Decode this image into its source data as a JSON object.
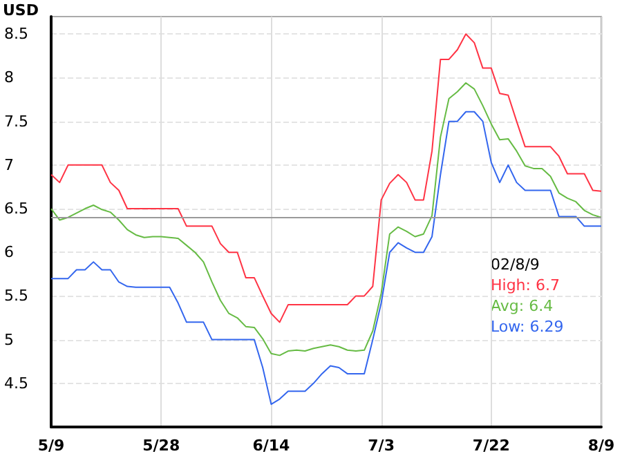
{
  "chart_data": {
    "type": "line",
    "ylabel": "USD",
    "categories": [
      "5/9",
      null,
      null,
      null,
      null,
      null,
      null,
      null,
      null,
      null,
      null,
      null,
      null,
      "5/28",
      null,
      null,
      null,
      null,
      null,
      null,
      null,
      null,
      null,
      null,
      null,
      null,
      "6/14",
      null,
      null,
      null,
      null,
      null,
      null,
      null,
      null,
      null,
      null,
      null,
      null,
      "7/3",
      null,
      null,
      null,
      null,
      null,
      null,
      null,
      null,
      null,
      null,
      null,
      null,
      "7/22",
      null,
      null,
      null,
      null,
      null,
      null,
      null,
      null,
      null,
      null,
      null,
      null,
      "8/9"
    ],
    "series": [
      {
        "color": "#ff3344",
        "values": [
          6.89,
          6.8,
          7.0,
          7.0,
          7.0,
          7.0,
          7.0,
          6.8,
          6.71,
          6.5,
          6.5,
          6.5,
          6.5,
          6.5,
          6.5,
          6.5,
          6.3,
          6.3,
          6.3,
          6.3,
          6.1,
          6.0,
          6.0,
          5.71,
          5.71,
          5.5,
          5.3,
          5.2,
          5.4,
          5.4,
          5.4,
          5.4,
          5.4,
          5.4,
          5.4,
          5.4,
          5.5,
          5.5,
          5.61,
          6.6,
          6.79,
          6.89,
          6.8,
          6.6,
          6.6,
          7.16,
          8.21,
          8.21,
          8.32,
          8.5,
          8.4,
          8.11,
          8.11,
          7.82,
          7.8,
          7.5,
          7.21,
          7.21,
          7.21,
          7.21,
          7.1,
          6.9,
          6.9,
          6.9,
          6.71,
          6.7
        ]
      },
      {
        "color": "#66bb44",
        "values": [
          6.5,
          6.37,
          6.4,
          6.45,
          6.5,
          6.54,
          6.49,
          6.46,
          6.37,
          6.26,
          6.2,
          6.17,
          6.18,
          6.18,
          6.17,
          6.16,
          6.08,
          6.0,
          5.89,
          5.66,
          5.45,
          5.3,
          5.25,
          5.15,
          5.14,
          5.01,
          4.84,
          4.82,
          4.87,
          4.88,
          4.87,
          4.9,
          4.92,
          4.94,
          4.92,
          4.88,
          4.87,
          4.88,
          5.1,
          5.53,
          6.21,
          6.29,
          6.24,
          6.18,
          6.21,
          6.42,
          7.32,
          7.76,
          7.84,
          7.94,
          7.87,
          7.68,
          7.47,
          7.29,
          7.3,
          7.16,
          6.99,
          6.96,
          6.96,
          6.87,
          6.68,
          6.62,
          6.58,
          6.48,
          6.43,
          6.4
        ]
      },
      {
        "color": "#3366ee",
        "values": [
          5.7,
          5.7,
          5.7,
          5.8,
          5.8,
          5.89,
          5.8,
          5.8,
          5.66,
          5.61,
          5.6,
          5.6,
          5.6,
          5.6,
          5.6,
          5.42,
          5.2,
          5.2,
          5.2,
          5.0,
          5.0,
          5.0,
          5.0,
          5.0,
          5.0,
          4.68,
          4.26,
          4.32,
          4.41,
          4.41,
          4.41,
          4.5,
          4.61,
          4.7,
          4.68,
          4.61,
          4.61,
          4.61,
          5.0,
          5.42,
          6.0,
          6.11,
          6.05,
          6.0,
          6.0,
          6.18,
          6.89,
          7.5,
          7.5,
          7.61,
          7.61,
          7.5,
          7.03,
          6.8,
          7.0,
          6.8,
          6.71,
          6.71,
          6.71,
          6.71,
          6.41,
          6.41,
          6.41,
          6.3,
          6.3,
          6.3
        ]
      }
    ],
    "ylim": [
      4,
      8.7
    ],
    "yticks": [
      4.5,
      5,
      5.5,
      6,
      6.5,
      7,
      7.5,
      8,
      8.5
    ],
    "grid": true,
    "marker": "none",
    "line_style": "solid",
    "ref_lines": [
      {
        "axis": "y",
        "value": 6.4,
        "color": "#999999"
      }
    ],
    "annotations": [
      "02/8/9",
      "High: 6.7",
      "Avg: 6.4",
      "Low: 6.29"
    ]
  }
}
